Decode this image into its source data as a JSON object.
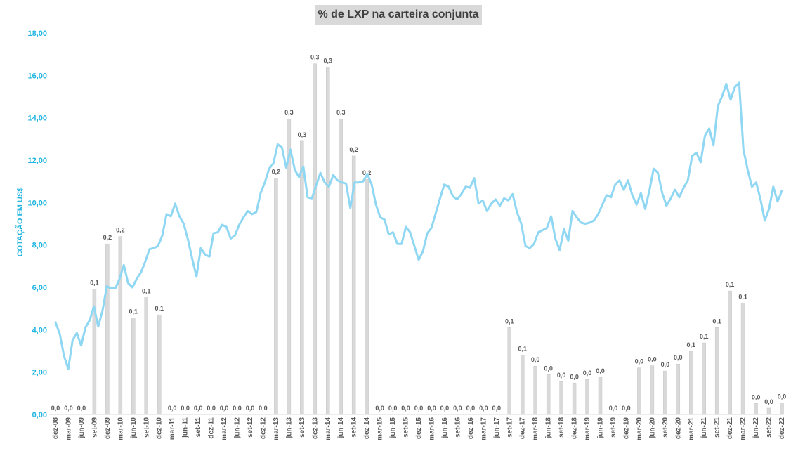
{
  "chart_data": {
    "type": "bar+line",
    "title": "% de LXP na carteira conjunta",
    "ylabel": "COTAÇÃO EM US$",
    "ylim": [
      0,
      18
    ],
    "yticks": [
      "0,00",
      "2,00",
      "4,00",
      "6,00",
      "8,00",
      "10,00",
      "12,00",
      "14,00",
      "16,00",
      "18,00"
    ],
    "x_tick_labels": [
      "dez-08",
      "mar-09",
      "jun-09",
      "set-09",
      "dez-09",
      "mar-10",
      "jun-10",
      "set-10",
      "dez-10",
      "mar-11",
      "jun-11",
      "set-11",
      "dez-11",
      "mar-12",
      "jun-12",
      "set-12",
      "dez-12",
      "mar-13",
      "jun-13",
      "set-13",
      "dez-13",
      "mar-14",
      "jun-14",
      "set-14",
      "dez-14",
      "mar-15",
      "jun-15",
      "set-15",
      "dez-15",
      "mar-16",
      "jun-16",
      "set-16",
      "dez-16",
      "mar-17",
      "jun-17",
      "set-17",
      "dez-17",
      "mar-18",
      "jun-18",
      "set-18",
      "dez-18",
      "mar-19",
      "jun-19",
      "set-19",
      "dez-19",
      "mar-20",
      "jun-20",
      "set-20",
      "dez-20",
      "mar-21",
      "jun-21",
      "set-21",
      "dez-21",
      "mar-22",
      "jun-22",
      "set-22",
      "dez-22"
    ],
    "bars": {
      "name": "% de LXP na carteira conjunta",
      "color": "#d9d9d9",
      "values": [
        0,
        0,
        0,
        5.92,
        8.05,
        8.4,
        4.55,
        5.52,
        4.7,
        0,
        0,
        0,
        0,
        0,
        0,
        0,
        0,
        11.15,
        13.95,
        12.9,
        16.55,
        16.4,
        13.95,
        12.2,
        11.1,
        0,
        0,
        0,
        0,
        0,
        0,
        0,
        0,
        0,
        0,
        4.1,
        2.8,
        2.28,
        1.88,
        1.55,
        1.48,
        1.65,
        1.75,
        0,
        0,
        2.2,
        2.3,
        2.05,
        2.38,
        2.98,
        3.38,
        4.1,
        5.83,
        5.25,
        0.52,
        0.3,
        0.55
      ],
      "labels": [
        "0,0",
        "0,0",
        "0,0",
        "0,1",
        "0,2",
        "0,2",
        "0,1",
        "0,1",
        "0,1",
        "0,0",
        "0,0",
        "0,0",
        "0,0",
        "0,0",
        "0,0",
        "0,0",
        "0,0",
        "0,2",
        "0,3",
        "0,3",
        "0,3",
        "0,3",
        "0,3",
        "0,2",
        "0,2",
        "0,0",
        "0,0",
        "0,0",
        "0,0",
        "0,0",
        "0,0",
        "0,0",
        "0,0",
        "0,0",
        "0,0",
        "0,1",
        "0,1",
        "0,0",
        "0,0",
        "0,0",
        "0,0",
        "0,0",
        "0,0",
        "0,0",
        "0,0",
        "0,0",
        "0,0",
        "0,0",
        "0,0",
        "0,1",
        "0,1",
        "0,1",
        "0,1",
        "0,1",
        "0,0",
        "0,0",
        "0,0"
      ]
    },
    "line": {
      "name": "Cotação em US$",
      "color": "#8fd7f2",
      "values": [
        4.35,
        3.8,
        2.75,
        2.15,
        3.5,
        3.85,
        3.25,
        4.1,
        4.45,
        5.1,
        4.15,
        4.9,
        6.05,
        5.95,
        5.95,
        6.4,
        7.05,
        6.2,
        6.0,
        6.4,
        6.7,
        7.2,
        7.8,
        7.85,
        7.95,
        8.45,
        9.45,
        9.35,
        9.95,
        9.35,
        9.0,
        8.25,
        7.35,
        6.5,
        7.85,
        7.55,
        7.45,
        8.55,
        8.6,
        8.95,
        8.85,
        8.3,
        8.45,
        8.95,
        9.3,
        9.6,
        9.45,
        9.55,
        10.45,
        10.95,
        11.6,
        11.85,
        12.75,
        12.6,
        11.65,
        12.5,
        11.55,
        11.2,
        11.7,
        10.25,
        10.2,
        10.8,
        11.4,
        10.95,
        10.75,
        11.3,
        11.05,
        10.95,
        10.9,
        9.75,
        10.95,
        10.95,
        11.0,
        11.35,
        10.85,
        9.9,
        9.3,
        9.2,
        8.5,
        8.6,
        8.05,
        8.05,
        8.85,
        8.6,
        7.95,
        7.3,
        7.7,
        8.55,
        8.8,
        9.5,
        10.2,
        10.85,
        10.75,
        10.3,
        10.15,
        10.4,
        10.75,
        10.7,
        11.15,
        9.95,
        10.1,
        9.6,
        9.95,
        10.15,
        9.85,
        10.2,
        10.1,
        10.4,
        9.55,
        9.0,
        7.95,
        7.85,
        8.05,
        8.6,
        8.7,
        8.8,
        9.35,
        8.3,
        7.75,
        8.75,
        8.2,
        9.6,
        9.3,
        9.05,
        9.0,
        9.05,
        9.15,
        9.45,
        9.9,
        10.35,
        10.25,
        10.85,
        11.05,
        10.6,
        11.05,
        10.35,
        9.9,
        10.45,
        9.7,
        10.55,
        11.6,
        11.4,
        10.45,
        9.85,
        10.2,
        10.6,
        10.25,
        10.7,
        11.05,
        12.2,
        12.35,
        11.9,
        13.15,
        13.5,
        12.7,
        14.55,
        15.0,
        15.6,
        14.85,
        15.45,
        15.65,
        12.5,
        11.55,
        10.75,
        10.95,
        10.15,
        9.15,
        9.7,
        10.75,
        10.05,
        10.55
      ]
    },
    "grid": false,
    "legend": "none"
  }
}
